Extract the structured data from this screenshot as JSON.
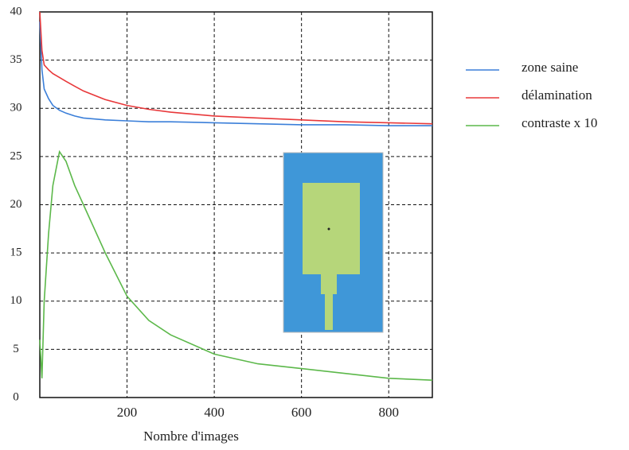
{
  "chart_data": {
    "type": "line",
    "x_label": "Nombre d'images",
    "x": [
      0,
      5,
      10,
      20,
      30,
      45,
      60,
      80,
      100,
      150,
      200,
      250,
      300,
      400,
      500,
      600,
      700,
      800,
      900
    ],
    "series": [
      {
        "name": "zone saine",
        "color": "#3b7fd9",
        "values": [
          39,
          34,
          32,
          31,
          30.3,
          29.8,
          29.5,
          29.2,
          29,
          28.8,
          28.7,
          28.6,
          28.6,
          28.5,
          28.4,
          28.3,
          28.3,
          28.2,
          28.2
        ]
      },
      {
        "name": "délamination",
        "color": "#e8383a",
        "values": [
          40,
          36,
          34.5,
          34,
          33.6,
          33.2,
          32.8,
          32.3,
          31.8,
          30.9,
          30.3,
          29.9,
          29.6,
          29.2,
          29,
          28.8,
          28.6,
          28.5,
          28.4
        ]
      },
      {
        "name": "contraste x 10",
        "color": "#5cb84a",
        "values": [
          6,
          2,
          10,
          17,
          22,
          25.5,
          24.5,
          22,
          20,
          15,
          10.5,
          8,
          6.5,
          4.5,
          3.5,
          3,
          2.5,
          2,
          1.8
        ]
      }
    ],
    "xlim": [
      0,
      900
    ],
    "xticks": [
      200,
      400,
      600,
      800
    ],
    "ylim": [
      0,
      40
    ],
    "yticks": [
      0,
      5,
      10,
      15,
      20,
      25,
      30,
      35,
      40
    ],
    "grid": true
  }
}
